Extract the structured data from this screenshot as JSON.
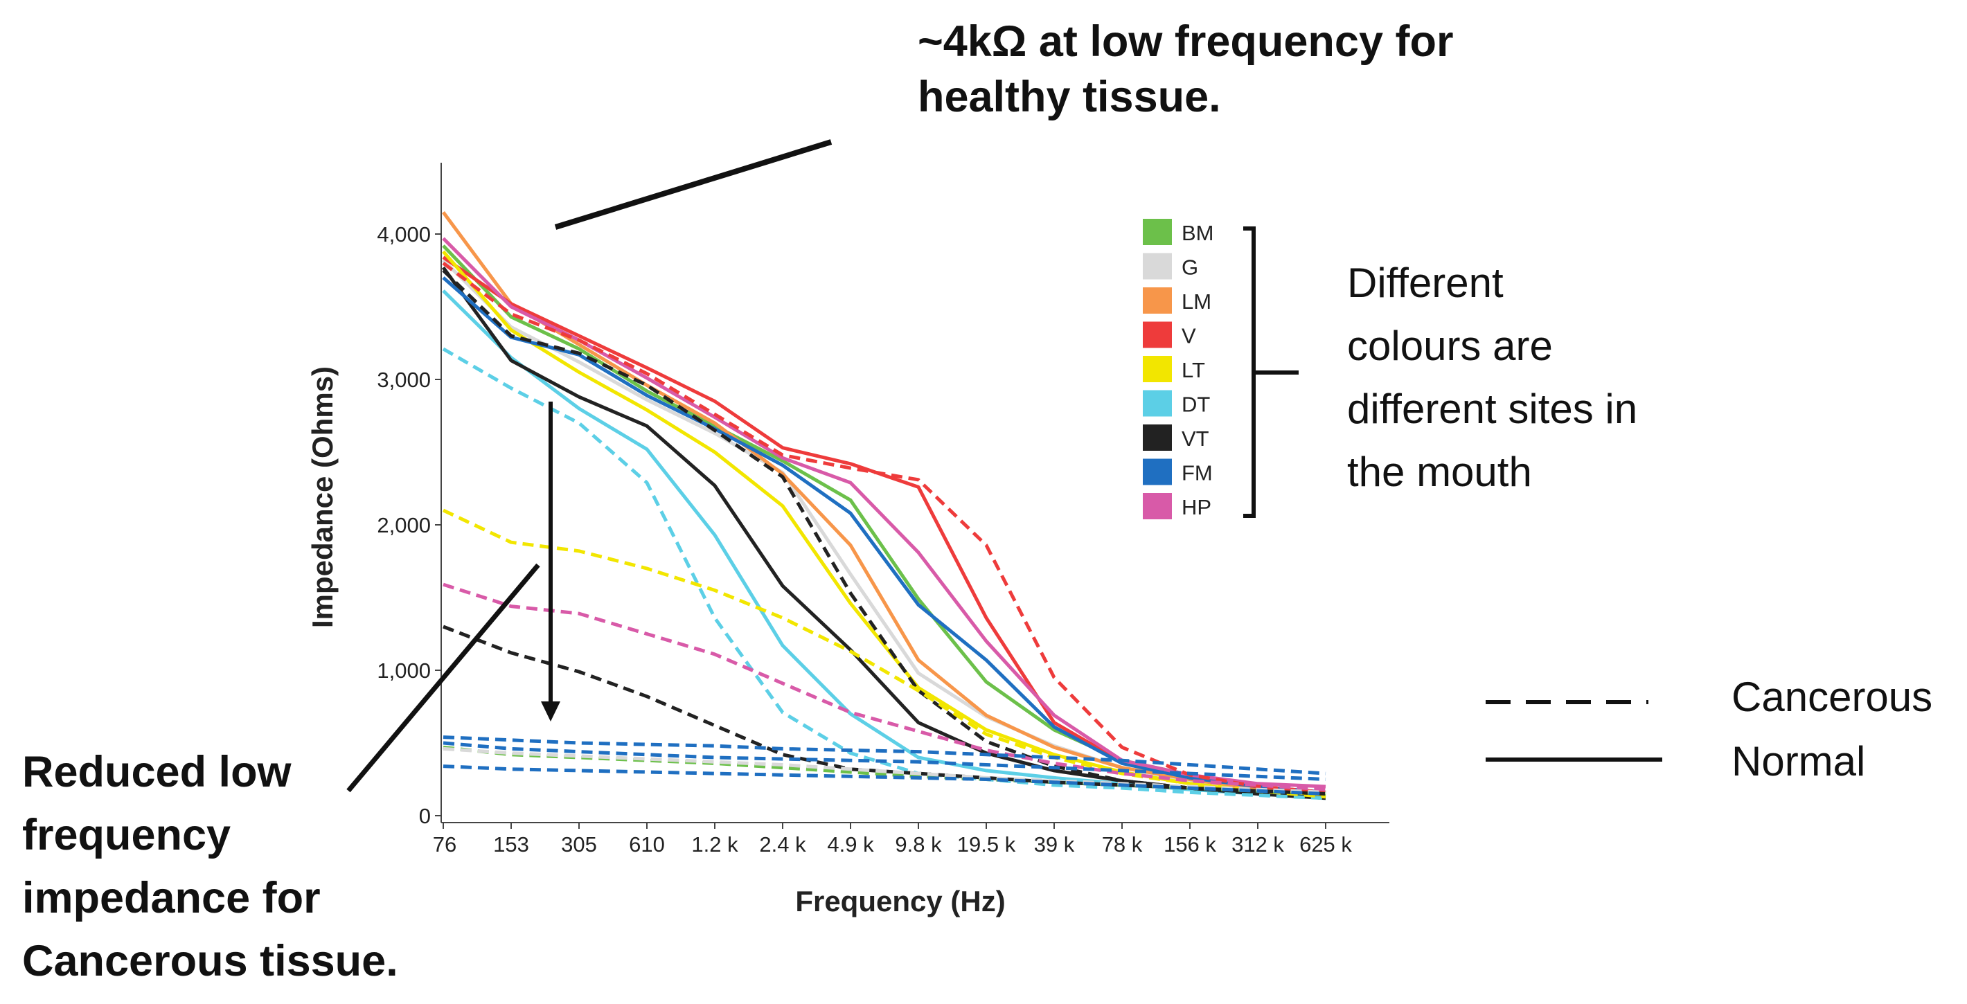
{
  "annotations": {
    "top": "~4kΩ at low frequency for\nhealthy tissue.",
    "bottom": "Reduced low\nfrequency\nimpedance for\nCancerous tissue.",
    "side": "Different\ncolours are\ndifferent sites in\nthe mouth"
  },
  "line_legend": {
    "cancerous": "Cancerous",
    "normal": "Normal"
  },
  "chart_data": {
    "type": "line",
    "title": "",
    "xlabel": "Frequency (Hz)",
    "ylabel": "Impedance (Ohms)",
    "categories": [
      "76",
      "153",
      "305",
      "610",
      "1.2 k",
      "2.4 k",
      "4.9 k",
      "9.8 k",
      "19.5 k",
      "39 k",
      "78 k",
      "156 k",
      "312 k",
      "625 k"
    ],
    "ylim": [
      0,
      4500
    ],
    "yticks": [
      0,
      1000,
      2000,
      3000,
      4000
    ],
    "ytick_labels": [
      "0",
      "1,000",
      "2,000",
      "3,000",
      "4,000"
    ],
    "sites": [
      {
        "code": "BM",
        "color": "#6cc04a"
      },
      {
        "code": "G",
        "color": "#d9d9d9"
      },
      {
        "code": "LM",
        "color": "#f7964a"
      },
      {
        "code": "V",
        "color": "#ee3b3b"
      },
      {
        "code": "LT",
        "color": "#f2e600"
      },
      {
        "code": "DT",
        "color": "#5ccfe6"
      },
      {
        "code": "VT",
        "color": "#222222"
      },
      {
        "code": "FM",
        "color": "#1f6fc1"
      },
      {
        "code": "HP",
        "color": "#d85aa8"
      }
    ],
    "series": [
      {
        "name": "BM normal",
        "site": "BM",
        "style": "solid",
        "values": [
          3920,
          3430,
          3210,
          2920,
          2680,
          2440,
          2170,
          1490,
          920,
          590,
          380,
          280,
          180,
          140
        ]
      },
      {
        "name": "G normal",
        "site": "G",
        "style": "solid",
        "values": [
          3820,
          3360,
          3120,
          2860,
          2630,
          2360,
          1660,
          980,
          680,
          480,
          330,
          240,
          170,
          130
        ]
      },
      {
        "name": "LM normal",
        "site": "LM",
        "style": "solid",
        "values": [
          4150,
          3520,
          3240,
          2960,
          2700,
          2350,
          1860,
          1070,
          690,
          470,
          330,
          250,
          180,
          140
        ]
      },
      {
        "name": "V normal",
        "site": "V",
        "style": "solid",
        "values": [
          3840,
          3520,
          3300,
          3080,
          2850,
          2530,
          2420,
          2260,
          1360,
          640,
          370,
          270,
          200,
          160
        ]
      },
      {
        "name": "LT normal",
        "site": "LT",
        "style": "solid",
        "values": [
          3880,
          3340,
          3050,
          2790,
          2500,
          2130,
          1460,
          880,
          590,
          420,
          300,
          220,
          160,
          130
        ]
      },
      {
        "name": "DT normal",
        "site": "DT",
        "style": "solid",
        "values": [
          3610,
          3150,
          2800,
          2520,
          1930,
          1170,
          700,
          400,
          310,
          260,
          220,
          180,
          150,
          120
        ]
      },
      {
        "name": "VT normal",
        "site": "VT",
        "style": "solid",
        "values": [
          3770,
          3130,
          2880,
          2680,
          2270,
          1580,
          1140,
          640,
          430,
          310,
          240,
          190,
          150,
          120
        ]
      },
      {
        "name": "FM normal",
        "site": "FM",
        "style": "solid",
        "values": [
          3700,
          3290,
          3170,
          2890,
          2660,
          2410,
          2080,
          1450,
          1070,
          610,
          360,
          260,
          200,
          160
        ]
      },
      {
        "name": "HP normal",
        "site": "HP",
        "style": "solid",
        "values": [
          3970,
          3500,
          3270,
          3010,
          2740,
          2460,
          2290,
          1810,
          1200,
          690,
          380,
          280,
          220,
          200
        ]
      },
      {
        "name": "V cancerous",
        "site": "V",
        "style": "dashed",
        "values": [
          3800,
          3450,
          3270,
          3040,
          2760,
          2480,
          2390,
          2310,
          1860,
          950,
          470,
          280,
          200,
          160
        ]
      },
      {
        "name": "VT cancerous",
        "site": "VT",
        "style": "dashed",
        "values": [
          3750,
          3300,
          3180,
          2960,
          2650,
          2330,
          1530,
          860,
          510,
          340,
          240,
          190,
          150,
          120
        ]
      },
      {
        "name": "DT cancerous",
        "site": "DT",
        "style": "dashed",
        "values": [
          3210,
          2940,
          2700,
          2290,
          1360,
          710,
          430,
          290,
          250,
          210,
          190,
          160,
          140,
          120
        ]
      },
      {
        "name": "LT cancerous",
        "site": "LT",
        "style": "dashed",
        "values": [
          2100,
          1880,
          1820,
          1700,
          1550,
          1360,
          1130,
          860,
          560,
          400,
          290,
          220,
          170,
          130
        ]
      },
      {
        "name": "HP cancerous",
        "site": "HP",
        "style": "dashed",
        "values": [
          1590,
          1440,
          1390,
          1250,
          1110,
          910,
          710,
          580,
          450,
          360,
          290,
          240,
          210,
          180
        ]
      },
      {
        "name": "VT cancerous 2",
        "site": "VT",
        "style": "dashed",
        "values": [
          1300,
          1120,
          990,
          820,
          620,
          420,
          320,
          290,
          260,
          230,
          210,
          190,
          170,
          150
        ]
      },
      {
        "name": "FM cancerous 1",
        "site": "FM",
        "style": "dashed",
        "values": [
          540,
          520,
          500,
          490,
          480,
          460,
          450,
          440,
          420,
          400,
          380,
          350,
          320,
          290
        ]
      },
      {
        "name": "FM cancerous 2",
        "site": "FM",
        "style": "dashed",
        "values": [
          500,
          460,
          440,
          420,
          400,
          390,
          380,
          370,
          350,
          330,
          310,
          290,
          270,
          250
        ]
      },
      {
        "name": "BM cancerous",
        "site": "BM",
        "style": "dashed",
        "values": [
          470,
          420,
          400,
          380,
          360,
          330,
          300,
          270,
          250,
          230,
          210,
          190,
          170,
          150
        ]
      },
      {
        "name": "G cancerous",
        "site": "G",
        "style": "dashed",
        "values": [
          460,
          430,
          410,
          390,
          370,
          350,
          320,
          290,
          260,
          240,
          220,
          200,
          180,
          160
        ]
      },
      {
        "name": "FM cancerous 3",
        "site": "FM",
        "style": "dashed",
        "values": [
          340,
          320,
          310,
          300,
          290,
          280,
          270,
          260,
          250,
          230,
          210,
          190,
          170,
          150
        ]
      }
    ]
  }
}
